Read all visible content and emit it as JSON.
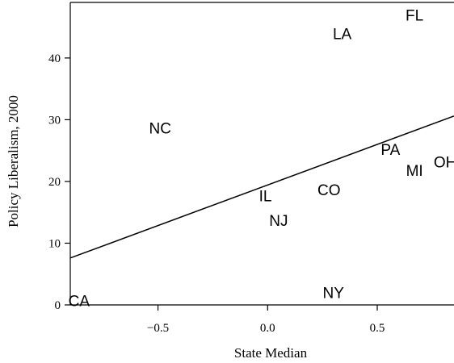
{
  "chart_data": {
    "type": "scatter",
    "xlabel": "State Median",
    "ylabel": "Policy Liberalism, 2000",
    "xlim": [
      -0.9,
      0.85
    ],
    "ylim": [
      0,
      49
    ],
    "x_ticks": [
      -0.5,
      0.0,
      0.5
    ],
    "x_tick_labels": [
      "−0.5",
      "0.0",
      "0.5"
    ],
    "y_ticks": [
      0,
      10,
      20,
      30,
      40
    ],
    "y_tick_labels": [
      "0",
      "10",
      "20",
      "30",
      "40"
    ],
    "grid": false,
    "points": [
      {
        "label": "CA",
        "x": -0.86,
        "y": 0.5
      },
      {
        "label": "NC",
        "x": -0.49,
        "y": 28.5
      },
      {
        "label": "IL",
        "x": -0.01,
        "y": 17.5
      },
      {
        "label": "NJ",
        "x": 0.05,
        "y": 13.5
      },
      {
        "label": "CO",
        "x": 0.28,
        "y": 18.5
      },
      {
        "label": "NY",
        "x": 0.3,
        "y": 1.8
      },
      {
        "label": "LA",
        "x": 0.34,
        "y": 43.8
      },
      {
        "label": "PA",
        "x": 0.56,
        "y": 25.0
      },
      {
        "label": "MI",
        "x": 0.67,
        "y": 21.6
      },
      {
        "label": "FL",
        "x": 0.67,
        "y": 46.8
      },
      {
        "label": "OH",
        "x": 0.81,
        "y": 23.0
      }
    ],
    "fit_line": {
      "x": [
        -0.9,
        0.85
      ],
      "y": [
        7.6,
        30.6
      ]
    }
  }
}
